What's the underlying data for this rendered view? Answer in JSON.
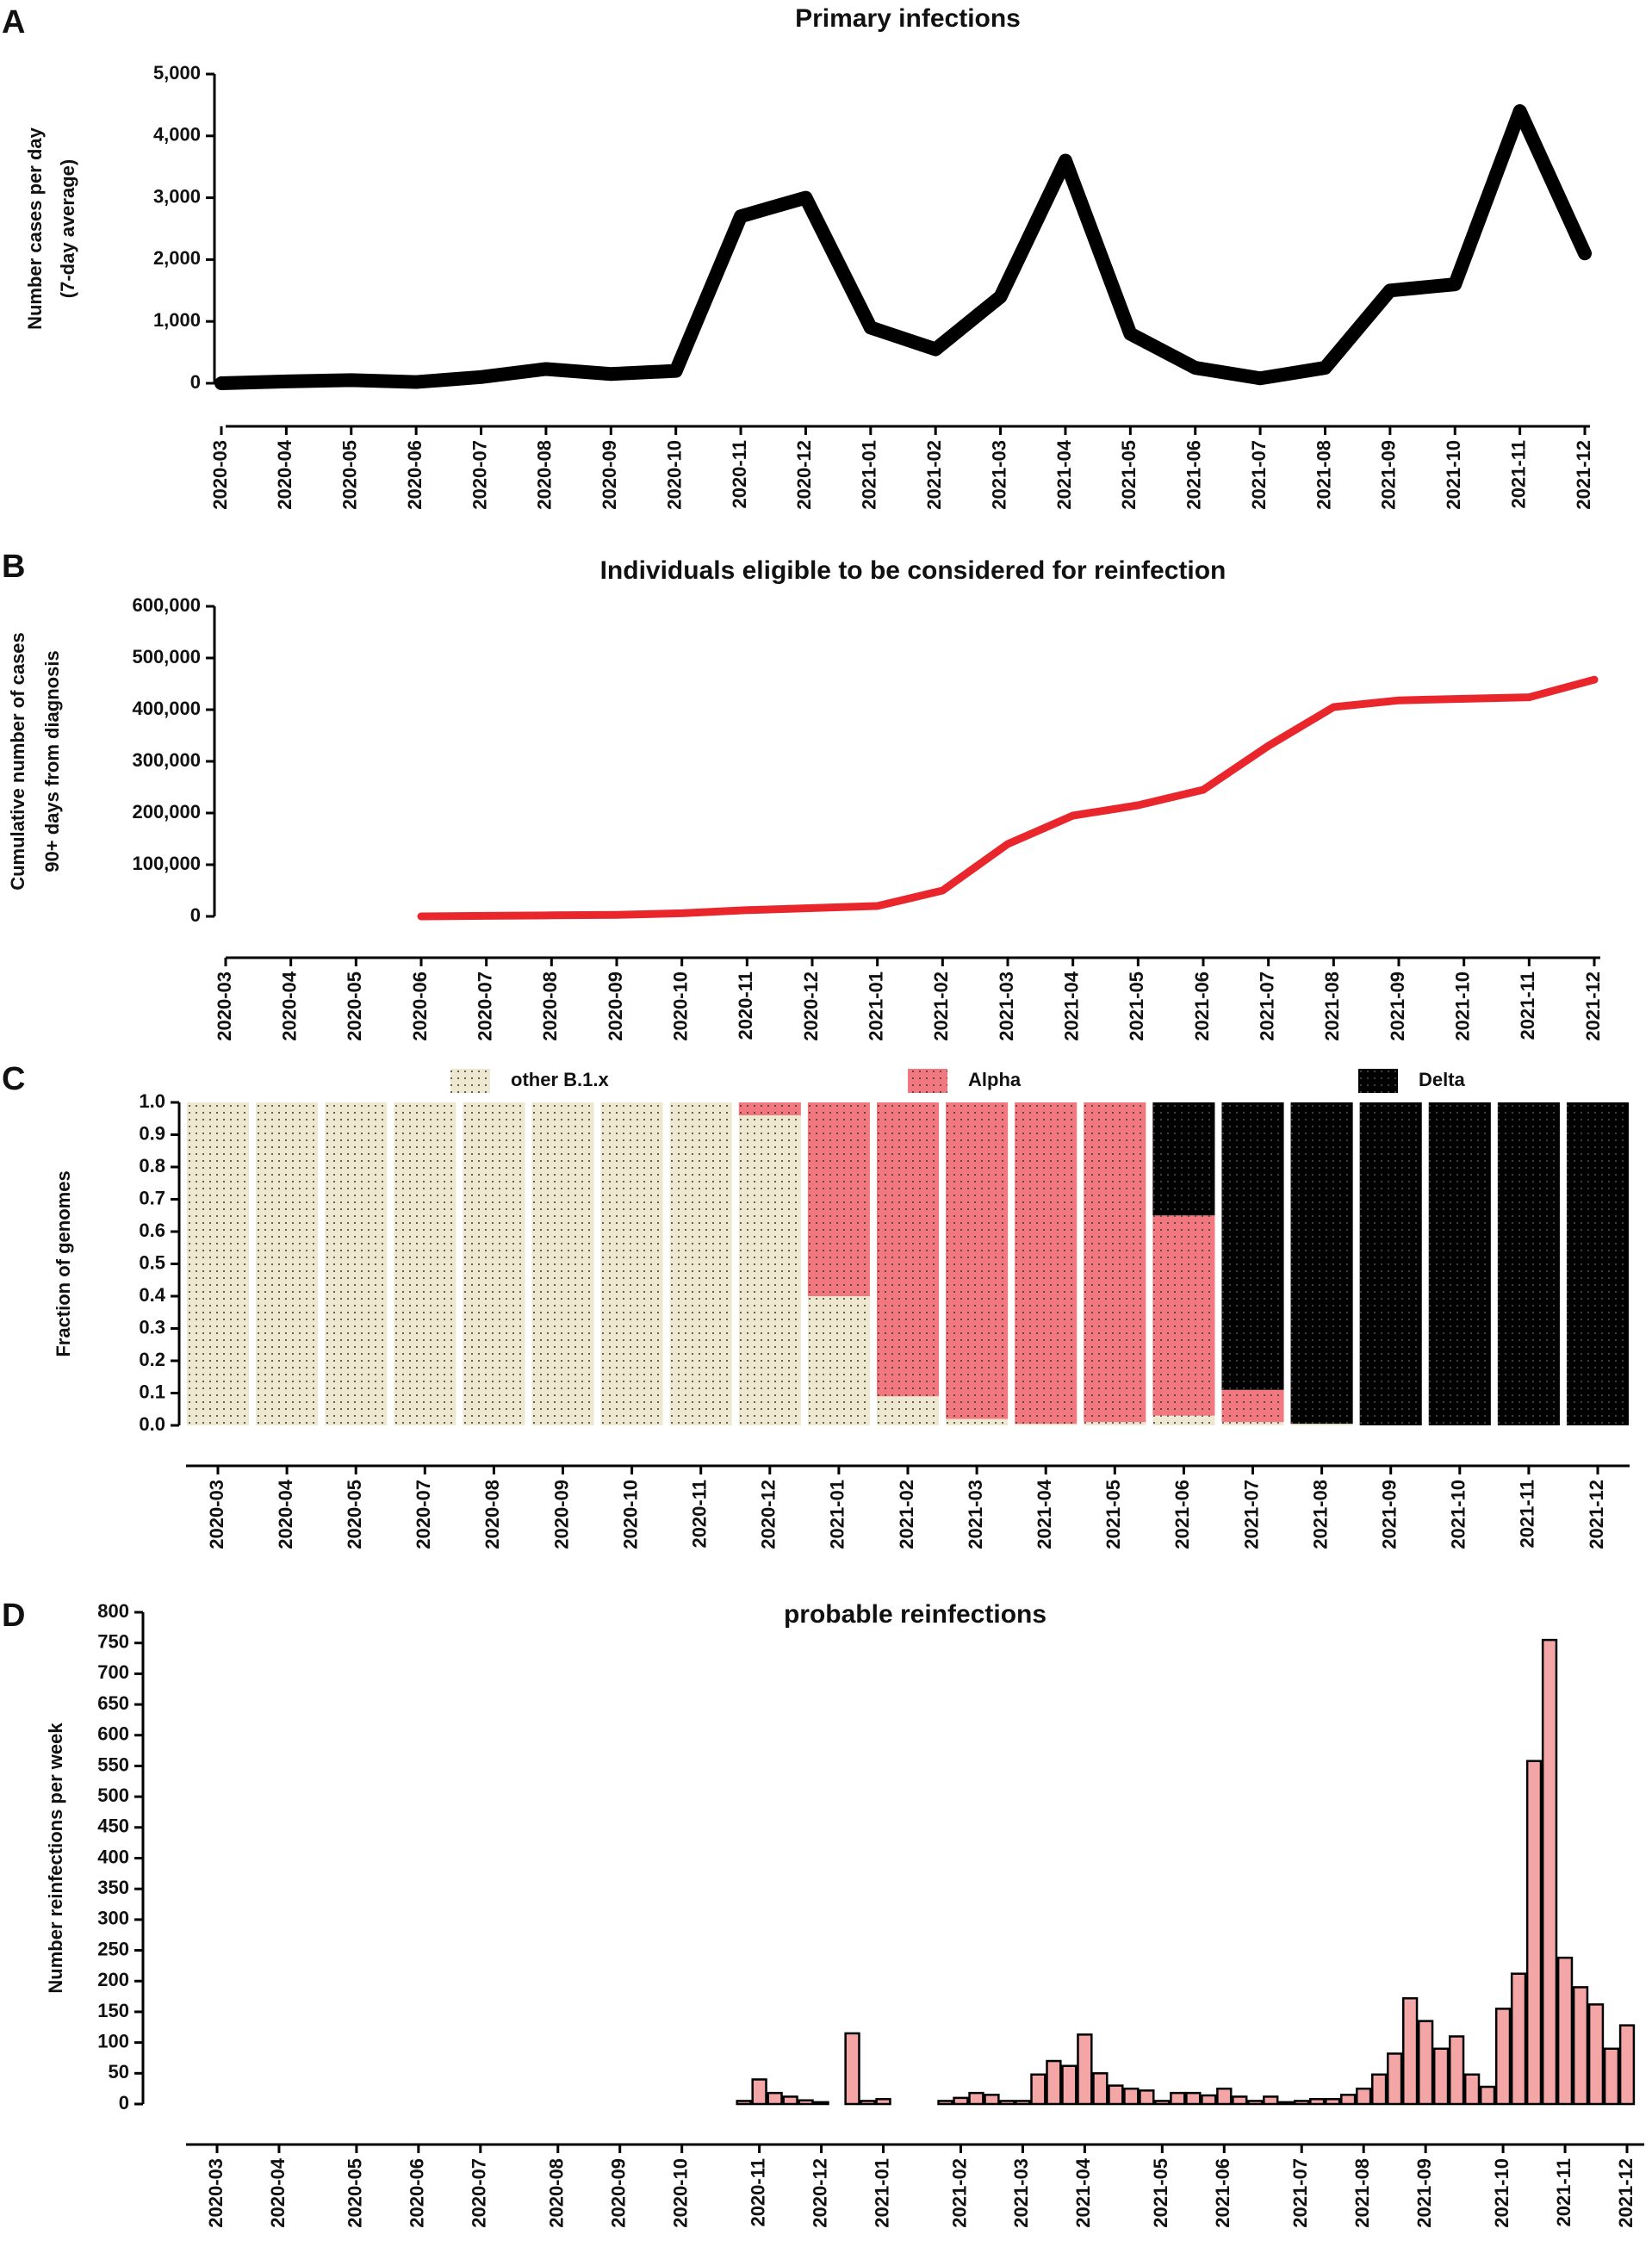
{
  "chart_data": [
    {
      "panel": "A",
      "type": "line",
      "title": "Primary infections",
      "ylabel": [
        "Number cases per day",
        "(7-day average)"
      ],
      "color": "#000000",
      "x": [
        "2020-03",
        "2020-04",
        "2020-05",
        "2020-06",
        "2020-07",
        "2020-08",
        "2020-09",
        "2020-10",
        "2020-11",
        "2020-12",
        "2021-01",
        "2021-02",
        "2021-03",
        "2021-04",
        "2021-05",
        "2021-06",
        "2021-07",
        "2021-08",
        "2021-09",
        "2021-10",
        "2021-11",
        "2021-12"
      ],
      "values": [
        0,
        30,
        50,
        20,
        100,
        230,
        150,
        200,
        2700,
        3000,
        900,
        550,
        1400,
        3600,
        800,
        250,
        80,
        250,
        1500,
        1600,
        4400,
        2100
      ],
      "xlim": [
        "2020-03",
        "2021-12"
      ],
      "xticks": [
        "2020-03",
        "2020-04",
        "2020-05",
        "2020-06",
        "2020-07",
        "2020-08",
        "2020-09",
        "2020-10",
        "2020-11",
        "2020-12",
        "2021-01",
        "2021-02",
        "2021-03",
        "2021-04",
        "2021-05",
        "2021-06",
        "2021-07",
        "2021-08",
        "2021-09",
        "2021-10",
        "2021-11",
        "2021-12"
      ],
      "ylim": [
        0,
        5000
      ],
      "yticks": [
        0,
        {
          "value": 1000,
          "label": "1,000"
        },
        {
          "value": 2000,
          "label": "2,000"
        },
        {
          "value": 3000,
          "label": "3,000"
        },
        {
          "value": 4000,
          "label": "4,000"
        },
        {
          "value": 5000,
          "label": "5,000"
        }
      ],
      "grid": false
    },
    {
      "panel": "B",
      "type": "line",
      "title": "Individuals eligible to be considered for reinfection",
      "ylabel": [
        "Cumulative number of cases",
        "90+ days from diagnosis"
      ],
      "color": "#e8262b",
      "x": [
        "2020-03",
        "2020-04",
        "2020-05",
        "2020-06",
        "2020-07",
        "2020-08",
        "2020-09",
        "2020-10",
        "2020-11",
        "2020-12",
        "2021-01",
        "2021-02",
        "2021-03",
        "2021-04",
        "2021-05",
        "2021-06",
        "2021-07",
        "2021-08",
        "2021-09",
        "2021-10",
        "2021-11",
        "2021-12"
      ],
      "values": [
        null,
        null,
        null,
        0,
        1000,
        2000,
        3000,
        6000,
        12000,
        16000,
        20000,
        50000,
        140000,
        195000,
        215000,
        245000,
        330000,
        405000,
        418000,
        421000,
        424000,
        458000
      ],
      "xlim": [
        "2020-03",
        "2021-12"
      ],
      "xticks": [
        "2020-03",
        "2020-04",
        "2020-05",
        "2020-06",
        "2020-07",
        "2020-08",
        "2020-09",
        "2020-10",
        "2020-11",
        "2020-12",
        "2021-01",
        "2021-02",
        "2021-03",
        "2021-04",
        "2021-05",
        "2021-06",
        "2021-07",
        "2021-08",
        "2021-09",
        "2021-10",
        "2021-11",
        "2021-12"
      ],
      "ylim": [
        0,
        600000
      ],
      "yticks": [
        0,
        {
          "value": 100000,
          "label": "100,000"
        },
        {
          "value": 200000,
          "label": "200,000"
        },
        {
          "value": 300000,
          "label": "300,000"
        },
        {
          "value": 400000,
          "label": "400,000"
        },
        {
          "value": 500000,
          "label": "500,000"
        },
        {
          "value": 600000,
          "label": "600,000"
        }
      ],
      "grid": false
    },
    {
      "panel": "C",
      "type": "stacked_bar",
      "ylabel": [
        "Fraction of genomes"
      ],
      "legend": "top",
      "categories": [
        "2020-03",
        "2020-04",
        "2020-05",
        "2020-07",
        "2020-08",
        "2020-09",
        "2020-10",
        "2020-11",
        "2020-12",
        "2021-01",
        "2021-02",
        "2021-03",
        "2021-04",
        "2021-05",
        "2021-06",
        "2021-07",
        "2021-08",
        "2021-09",
        "2021-10",
        "2021-11",
        "2021-12"
      ],
      "series": [
        {
          "name": "other B.1.x",
          "color": "#efe8d0",
          "values": [
            1,
            1,
            1,
            1,
            1,
            1,
            1,
            1,
            0.96,
            0.4,
            0.09,
            0.02,
            0.005,
            0.01,
            0.03,
            0.01,
            0.005,
            0,
            0,
            0,
            0
          ]
        },
        {
          "name": "Alpha",
          "color": "#f0787e",
          "values": [
            0,
            0,
            0,
            0,
            0,
            0,
            0,
            0,
            0.04,
            0.6,
            0.91,
            0.98,
            0.995,
            0.99,
            0.62,
            0.1,
            0,
            0,
            0,
            0,
            0
          ]
        },
        {
          "name": "Delta",
          "color": "#000000",
          "values": [
            0,
            0,
            0,
            0,
            0,
            0,
            0,
            0,
            0,
            0,
            0,
            0,
            0,
            0,
            0.35,
            0.89,
            0.995,
            1,
            1,
            1,
            1
          ]
        }
      ],
      "ylim": [
        0,
        1
      ],
      "yticks": [
        {
          "value": 0,
          "label": "0.0"
        },
        0.1,
        0.2,
        0.3,
        0.4,
        0.5,
        0.6,
        0.7,
        0.8,
        0.9,
        {
          "value": 1,
          "label": "1.0"
        }
      ],
      "grid": false
    },
    {
      "panel": "D",
      "type": "bar",
      "title": "probable reinfections",
      "ylabel": [
        "Number reinfections per week"
      ],
      "color": "#f4a6a6",
      "categories": [
        "2020-03",
        null,
        null,
        null,
        "2020-04",
        null,
        null,
        null,
        null,
        "2020-05",
        null,
        null,
        null,
        "2020-06",
        null,
        null,
        null,
        "2020-07",
        null,
        null,
        null,
        null,
        "2020-08",
        null,
        null,
        null,
        "2020-09",
        null,
        null,
        null,
        "2020-10",
        null,
        null,
        null,
        null,
        "2020-11",
        null,
        null,
        null,
        "2020-12",
        null,
        null,
        null,
        "2021-01",
        null,
        null,
        null,
        null,
        "2021-02",
        null,
        null,
        null,
        "2021-03",
        null,
        null,
        null,
        "2021-04",
        null,
        null,
        null,
        null,
        "2021-05",
        null,
        null,
        null,
        "2021-06",
        null,
        null,
        null,
        null,
        "2021-07",
        null,
        null,
        null,
        "2021-08",
        null,
        null,
        null,
        "2021-09",
        null,
        null,
        null,
        null,
        "2021-10",
        null,
        null,
        null,
        "2021-11",
        null,
        null,
        null,
        "2021-12"
      ],
      "values": [
        null,
        null,
        null,
        null,
        null,
        null,
        null,
        null,
        null,
        null,
        null,
        null,
        null,
        null,
        null,
        null,
        null,
        null,
        null,
        null,
        null,
        null,
        null,
        null,
        null,
        null,
        null,
        null,
        null,
        null,
        null,
        null,
        null,
        null,
        5,
        40,
        18,
        12,
        6,
        3,
        null,
        115,
        5,
        8,
        0,
        null,
        0,
        5,
        10,
        18,
        15,
        5,
        5,
        48,
        70,
        62,
        113,
        50,
        30,
        25,
        22,
        5,
        18,
        18,
        14,
        25,
        12,
        5,
        12,
        3,
        5,
        8,
        8,
        15,
        25,
        48,
        82,
        172,
        135,
        90,
        110,
        48,
        28,
        155,
        212,
        558,
        755,
        238,
        190,
        162,
        90,
        128
      ],
      "ylim": [
        0,
        800
      ],
      "yticks": [
        0,
        50,
        100,
        150,
        200,
        250,
        300,
        350,
        400,
        450,
        500,
        550,
        600,
        650,
        700,
        750,
        800
      ],
      "grid": false
    }
  ]
}
